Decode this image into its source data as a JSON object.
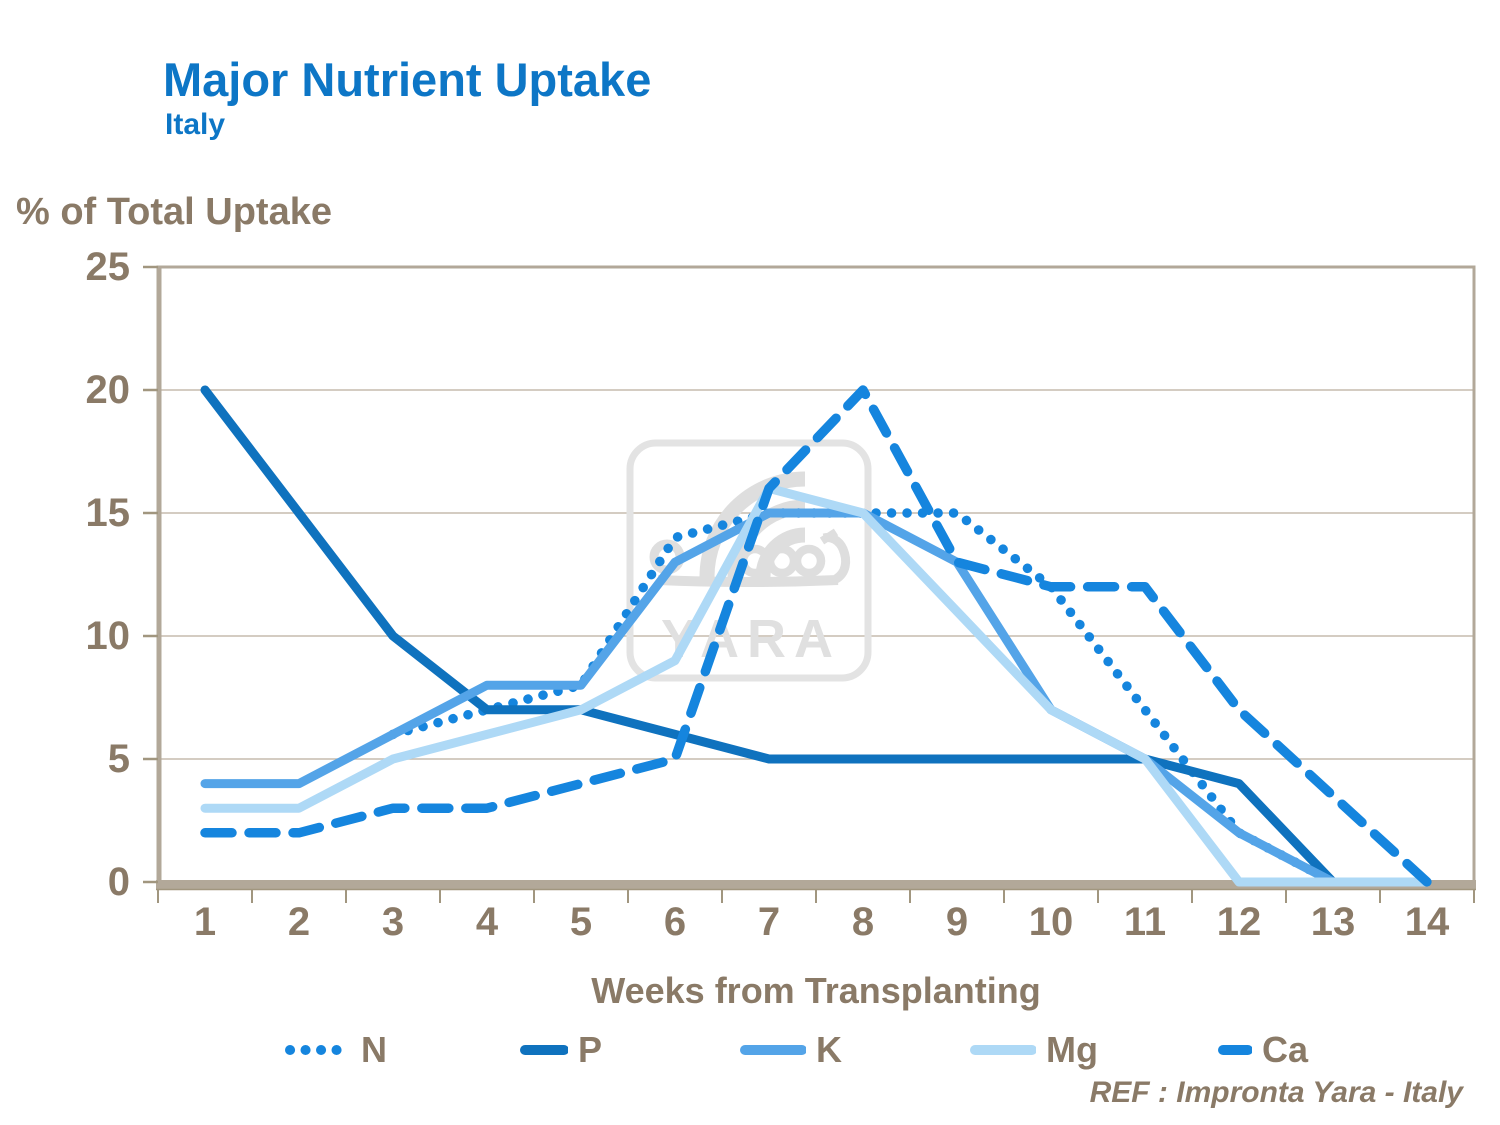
{
  "header": {
    "title": "Major Nutrient Uptake",
    "subtitle": "Italy"
  },
  "chart": {
    "ref_note": "REF : Impronta Yara - Italy",
    "watermark_text": "YARA"
  },
  "colors": {
    "title_blue": "#0d76c6",
    "label_brown": "#8a7a67",
    "grid": "#c5bbad",
    "frame": "#b2a899",
    "tick": "#a1967f",
    "watermark_gray": "#e0e0e0"
  },
  "chart_data": {
    "type": "line",
    "x": [
      1,
      2,
      3,
      4,
      5,
      6,
      7,
      8,
      9,
      10,
      11,
      12,
      13,
      14
    ],
    "xlabel": "Weeks from Transplanting",
    "ylabel": "% of Total Uptake",
    "ylim": [
      0,
      25
    ],
    "yticks": [
      0,
      5,
      10,
      15,
      20,
      25
    ],
    "grid": "horizontal",
    "legend_position": "bottom",
    "series": [
      {
        "name": "N",
        "style": "dotted",
        "color": "#1585de",
        "values": [
          null,
          null,
          6,
          7,
          8,
          14,
          15,
          15,
          15,
          12,
          7,
          2,
          0,
          null
        ]
      },
      {
        "name": "P",
        "style": "solid",
        "color": "#0f72be",
        "values": [
          20,
          15,
          10,
          7,
          7,
          6,
          5,
          5,
          5,
          5,
          5,
          4,
          0,
          null
        ]
      },
      {
        "name": "K",
        "style": "solid",
        "color": "#54a4e8",
        "values": [
          4,
          4,
          6,
          8,
          8,
          13,
          15,
          15,
          13,
          7,
          5,
          2,
          0,
          null
        ]
      },
      {
        "name": "Mg",
        "style": "solid",
        "color": "#aed9f6",
        "values": [
          3,
          3,
          5,
          6,
          7,
          9,
          16,
          15,
          11,
          7,
          5,
          0,
          0,
          0
        ]
      },
      {
        "name": "Ca",
        "style": "dashed",
        "color": "#1585de",
        "values": [
          2,
          2,
          3,
          3,
          4,
          5,
          16,
          20,
          13,
          12,
          12,
          7,
          3.5,
          0
        ]
      }
    ]
  }
}
